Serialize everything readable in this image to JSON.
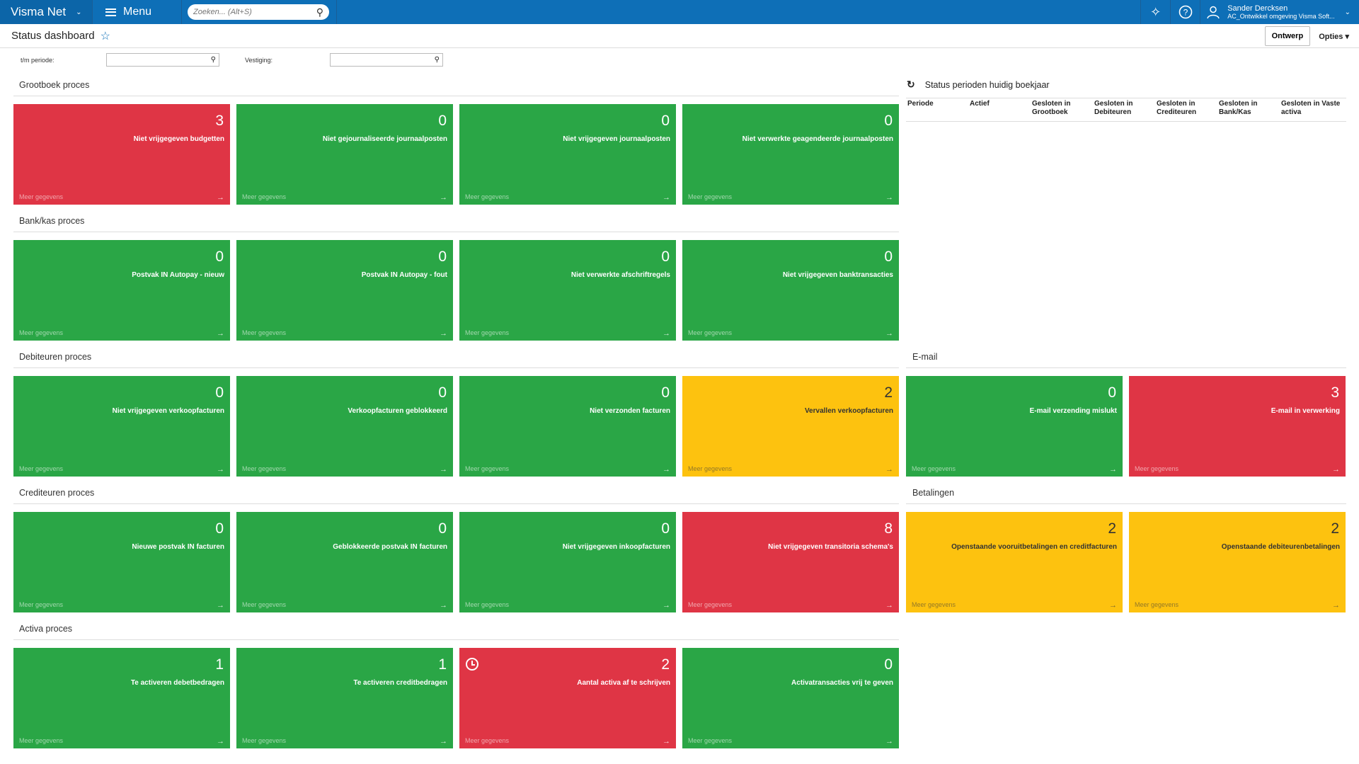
{
  "app": {
    "brand": "Visma Net",
    "menu_label": "Menu",
    "search_placeholder": "Zoeken... (Alt+S)",
    "user_name": "Sander Dercksen",
    "user_org": "AC_Ontwikkel omgeving Visma Soft..."
  },
  "page": {
    "title": "Status dashboard",
    "design_button": "Ontwerp",
    "options_label": "Opties"
  },
  "filters": {
    "period_label": "t/m periode:",
    "period_value": "",
    "branch_label": "Vestiging:",
    "branch_value": ""
  },
  "more_label": "Meer gegevens",
  "sections": {
    "grootboek": {
      "title": "Grootboek proces",
      "tiles": [
        {
          "count": "3",
          "label": "Niet vrijgegeven budgetten",
          "color": "#df3545"
        },
        {
          "count": "0",
          "label": "Niet gejournaliseerde journaalposten",
          "color": "#2aa646"
        },
        {
          "count": "0",
          "label": "Niet vrijgegeven journaalposten",
          "color": "#2aa646"
        },
        {
          "count": "0",
          "label": "Niet verwerkte geagendeerde journaalposten",
          "color": "#2aa646"
        }
      ]
    },
    "bankkas": {
      "title": "Bank/kas proces",
      "tiles": [
        {
          "count": "0",
          "label": "Postvak IN Autopay - nieuw",
          "color": "#2aa646"
        },
        {
          "count": "0",
          "label": "Postvak IN Autopay - fout",
          "color": "#2aa646"
        },
        {
          "count": "0",
          "label": "Niet verwerkte afschriftregels",
          "color": "#2aa646"
        },
        {
          "count": "0",
          "label": "Niet vrijgegeven banktransacties",
          "color": "#2aa646"
        }
      ]
    },
    "debiteuren": {
      "title": "Debiteuren proces",
      "tiles": [
        {
          "count": "0",
          "label": "Niet vrijgegeven verkoopfacturen",
          "color": "#2aa646"
        },
        {
          "count": "0",
          "label": "Verkoopfacturen geblokkeerd",
          "color": "#2aa646"
        },
        {
          "count": "0",
          "label": "Niet verzonden facturen",
          "color": "#2aa646"
        },
        {
          "count": "2",
          "label": "Vervallen verkoopfacturen",
          "color": "#fdc20f"
        }
      ]
    },
    "email": {
      "title": "E-mail",
      "tiles": [
        {
          "count": "0",
          "label": "E-mail verzending mislukt",
          "color": "#2aa646"
        },
        {
          "count": "3",
          "label": "E-mail in verwerking",
          "color": "#df3545"
        }
      ]
    },
    "crediteuren": {
      "title": "Crediteuren proces",
      "tiles": [
        {
          "count": "0",
          "label": "Nieuwe postvak IN facturen",
          "color": "#2aa646"
        },
        {
          "count": "0",
          "label": "Geblokkeerde postvak IN facturen",
          "color": "#2aa646"
        },
        {
          "count": "0",
          "label": "Niet vrijgegeven inkoopfacturen",
          "color": "#2aa646"
        },
        {
          "count": "8",
          "label": "Niet vrijgegeven transitoria schema's",
          "color": "#df3545"
        }
      ]
    },
    "betalingen": {
      "title": "Betalingen",
      "tiles": [
        {
          "count": "2",
          "label": "Openstaande vooruitbetalingen en creditfacturen",
          "color": "#fdc20f"
        },
        {
          "count": "2",
          "label": "Openstaande debiteurenbetalingen",
          "color": "#fdc20f"
        }
      ]
    },
    "activa": {
      "title": "Activa proces",
      "tiles": [
        {
          "count": "1",
          "label": "Te activeren debetbedragen",
          "color": "#2aa646"
        },
        {
          "count": "1",
          "label": "Te activeren creditbedragen",
          "color": "#2aa646"
        },
        {
          "count": "2",
          "label": "Aantal activa af te schrijven",
          "color": "#df3545",
          "icon": "clock-icon"
        },
        {
          "count": "0",
          "label": "Activatransacties vrij te geven",
          "color": "#2aa646"
        }
      ]
    }
  },
  "status_table": {
    "title": "Status perioden huidig boekjaar",
    "columns": [
      "Periode",
      "Actief",
      "Gesloten in Grootboek",
      "Gesloten in Debiteuren",
      "Gesloten in Crediteuren",
      "Gesloten in Bank/Kas",
      "Gesloten in Vaste activa"
    ],
    "rows": []
  }
}
